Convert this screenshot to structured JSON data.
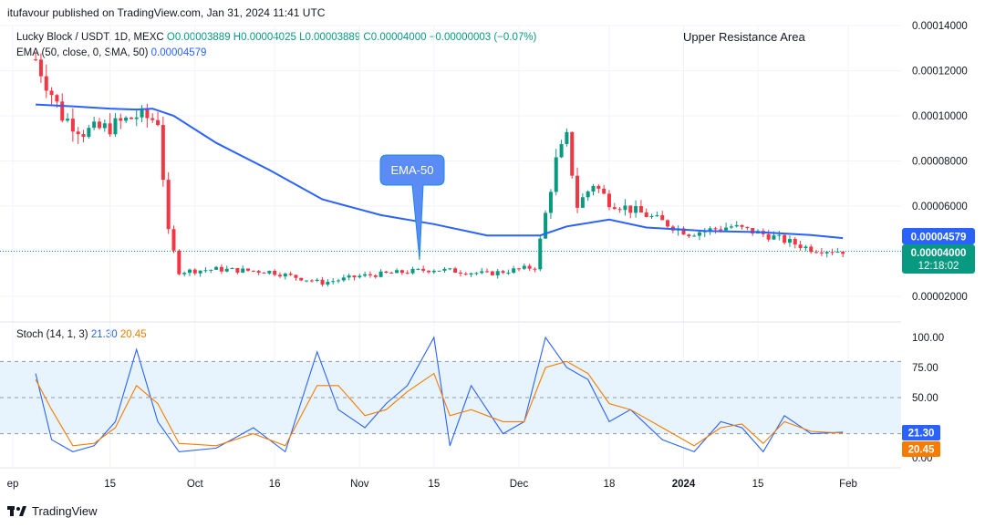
{
  "header": {
    "published": "itufavour published on TradingView.com, Jan 31, 2024 11:41 UTC"
  },
  "legend": {
    "symbol": "Lucky Block / USDT, 1D, MEXC",
    "ohlc_o": "O0.00003889",
    "ohlc_h": "H0.00004025",
    "ohlc_l": "L0.00003889",
    "ohlc_c": "C0.00004000",
    "change": "−0.00000003 (−0.07%)",
    "ema_label": "EMA (50, close, 0, SMA, 50)",
    "ema_value": "0.00004579"
  },
  "annotations": {
    "upper_resistance": "Upper Resistance Area",
    "ema_callout": "EMA-50"
  },
  "price_axis": {
    "ticks": [
      "0.00014000",
      "0.00012000",
      "0.00010000",
      "0.00008000",
      "0.00006000",
      "0.00002000"
    ],
    "ema_badge": "0.00004579",
    "price_badge": "0.00004000",
    "countdown": "12:18:02"
  },
  "stoch": {
    "label": "Stoch (14, 1, 3)",
    "k_value": "21.30",
    "d_value": "20.45",
    "ticks": [
      "100.00",
      "75.00",
      "50.00",
      "0.00"
    ]
  },
  "time_axis": {
    "labels": [
      "ep",
      "15",
      "Oct",
      "16",
      "Nov",
      "15",
      "Dec",
      "18",
      "2024",
      "15",
      "Feb"
    ]
  },
  "footer": {
    "brand": "TradingView"
  },
  "colors": {
    "up": "#089981",
    "down": "#f23645",
    "ema": "#2962ff",
    "stoch_k": "#2962ff",
    "stoch_d": "#f57c00",
    "band": "#e3f2fd"
  },
  "chart_data": [
    {
      "type": "candlestick",
      "title": "Lucky Block / USDT, 1D, MEXC",
      "ylim": [
        1.5e-05,
        0.00014
      ],
      "y_scale": "linear",
      "grid": true,
      "legend_position": "top-left",
      "series": [
        {
          "name": "EMA (50, close, 0, SMA, 50)",
          "x": [
            "2023-09-01",
            "2023-09-08",
            "2023-09-15",
            "2023-09-20",
            "2023-09-23",
            "2023-09-27",
            "2023-10-05",
            "2023-10-15",
            "2023-10-25",
            "2023-11-05",
            "2023-11-15",
            "2023-11-25",
            "2023-12-05",
            "2023-12-10",
            "2023-12-18",
            "2023-12-25",
            "2024-01-05",
            "2024-01-15",
            "2024-01-25",
            "2024-01-31"
          ],
          "values": [
            0.000105,
            0.0001042,
            0.0001032,
            0.0001028,
            0.0001032,
            0.0001,
            8.8e-05,
            7.6e-05,
            6.3e-05,
            5.6e-05,
            5.2e-05,
            4.7e-05,
            4.7e-05,
            5.1e-05,
            5.4e-05,
            5.05e-05,
            4.9e-05,
            4.85e-05,
            4.72e-05,
            4.58e-05
          ]
        },
        {
          "name": "Price (close)",
          "x": [
            "2023-09-01",
            "2023-09-03",
            "2023-09-06",
            "2023-09-10",
            "2023-09-15",
            "2023-09-20",
            "2023-09-24",
            "2023-09-26",
            "2023-09-28",
            "2023-10-05",
            "2023-10-15",
            "2023-10-25",
            "2023-11-01",
            "2023-11-15",
            "2023-11-25",
            "2023-12-04",
            "2023-12-08",
            "2023-12-10",
            "2023-12-12",
            "2023-12-15",
            "2023-12-18",
            "2023-12-25",
            "2024-01-02",
            "2024-01-10",
            "2024-01-17",
            "2024-01-25",
            "2024-01-31"
          ],
          "values": [
            0.000125,
            0.000115,
            0.0001,
            9.3e-05,
            9.5e-05,
            0.0001,
            9.8e-05,
            4.8e-05,
            3.1e-05,
            3.2e-05,
            3.1e-05,
            2.6e-05,
            2.9e-05,
            3.2e-05,
            3e-05,
            3.3e-05,
            8e-05,
            9e-05,
            6e-05,
            7e-05,
            6.2e-05,
            5.6e-05,
            4.8e-05,
            5.1e-05,
            4.7e-05,
            4.1e-05,
            4e-05
          ]
        }
      ]
    },
    {
      "type": "line",
      "title": "Stoch (14, 1, 3)",
      "ylim": [
        0,
        100
      ],
      "grid": true,
      "series": [
        {
          "name": "%K",
          "x": [
            "2023-09-01",
            "2023-09-04",
            "2023-09-08",
            "2023-09-12",
            "2023-09-16",
            "2023-09-20",
            "2023-09-24",
            "2023-09-28",
            "2023-10-05",
            "2023-10-12",
            "2023-10-18",
            "2023-10-24",
            "2023-10-28",
            "2023-11-02",
            "2023-11-06",
            "2023-11-10",
            "2023-11-15",
            "2023-11-18",
            "2023-11-22",
            "2023-11-28",
            "2023-12-02",
            "2023-12-06",
            "2023-12-10",
            "2023-12-14",
            "2023-12-18",
            "2023-12-22",
            "2023-12-28",
            "2024-01-03",
            "2024-01-08",
            "2024-01-12",
            "2024-01-16",
            "2024-01-20",
            "2024-01-25",
            "2024-01-31"
          ],
          "values": [
            70,
            15,
            5,
            10,
            30,
            90,
            30,
            5,
            8,
            25,
            5,
            88,
            40,
            25,
            45,
            60,
            100,
            10,
            60,
            20,
            30,
            100,
            75,
            65,
            30,
            40,
            15,
            5,
            30,
            25,
            5,
            35,
            20,
            21.3
          ]
        },
        {
          "name": "%D",
          "x": [
            "2023-09-01",
            "2023-09-04",
            "2023-09-08",
            "2023-09-12",
            "2023-09-16",
            "2023-09-20",
            "2023-09-24",
            "2023-09-28",
            "2023-10-05",
            "2023-10-12",
            "2023-10-18",
            "2023-10-24",
            "2023-10-28",
            "2023-11-02",
            "2023-11-06",
            "2023-11-10",
            "2023-11-15",
            "2023-11-18",
            "2023-11-22",
            "2023-11-28",
            "2023-12-02",
            "2023-12-06",
            "2023-12-10",
            "2023-12-14",
            "2023-12-18",
            "2023-12-22",
            "2023-12-28",
            "2024-01-03",
            "2024-01-08",
            "2024-01-12",
            "2024-01-16",
            "2024-01-20",
            "2024-01-25",
            "2024-01-31"
          ],
          "values": [
            65,
            40,
            10,
            12,
            25,
            60,
            45,
            12,
            10,
            20,
            10,
            60,
            60,
            35,
            40,
            55,
            70,
            35,
            40,
            30,
            30,
            75,
            80,
            70,
            45,
            40,
            25,
            10,
            25,
            28,
            12,
            30,
            22,
            20.45
          ]
        }
      ]
    }
  ]
}
